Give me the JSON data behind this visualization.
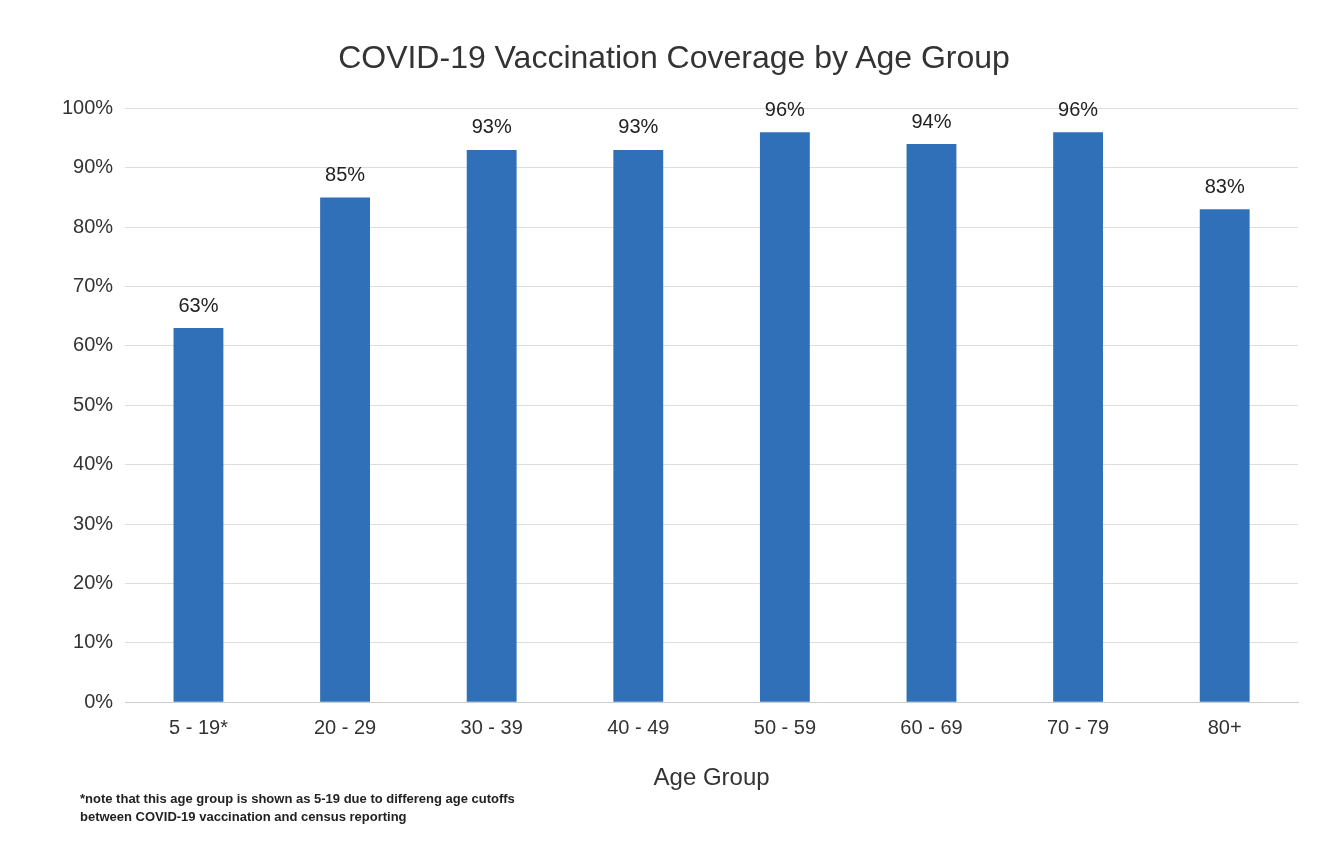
{
  "chart_data": {
    "type": "bar",
    "title": "COVID-19 Vaccination Coverage by Age Group",
    "xlabel": "Age Group",
    "categories": [
      "5 - 19*",
      "20 - 29",
      "30 - 39",
      "40 - 49",
      "50 - 59",
      "60 - 69",
      "70 - 79",
      "80+"
    ],
    "values": [
      63,
      85,
      93,
      93,
      96,
      94,
      96,
      83
    ],
    "value_labels": [
      "63%",
      "85%",
      "93%",
      "93%",
      "96%",
      "94%",
      "96%",
      "83%"
    ],
    "color": "#2f70b8",
    "ylim": [
      0,
      100
    ],
    "yticks": [
      {
        "value": 0,
        "label": "0%"
      },
      {
        "value": 10,
        "label": "10%"
      },
      {
        "value": 20,
        "label": "20%"
      },
      {
        "value": 30,
        "label": "30%"
      },
      {
        "value": 40,
        "label": "40%"
      },
      {
        "value": 50,
        "label": "50%"
      },
      {
        "value": 60,
        "label": "60%"
      },
      {
        "value": 70,
        "label": "70%"
      },
      {
        "value": 80,
        "label": "80%"
      },
      {
        "value": 90,
        "label": "90%"
      },
      {
        "value": 100,
        "label": "100%"
      }
    ],
    "grid": "y",
    "annotations": [
      "*note that this age group is shown as 5-19 due to differeng age cutoffs between COVID-19 vaccination and census reporting"
    ]
  }
}
